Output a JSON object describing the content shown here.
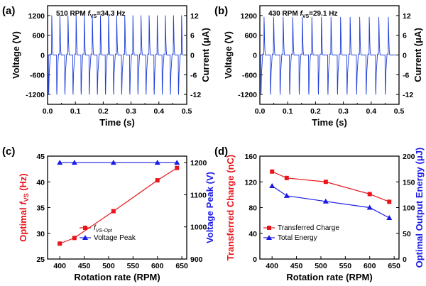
{
  "colors": {
    "black": "#000000",
    "red": "#e8141a",
    "blue": "#1a1ae8",
    "trace": "#1f3fd9"
  },
  "chart_data": [
    {
      "panel": "(a)",
      "type": "line",
      "annotation_prefix": "510 RPM ",
      "annotation_f": "f",
      "annotation_sub": "VS",
      "annotation_suffix": "=34.3 Hz",
      "xlabel": "Time (s)",
      "ylabel_left": "Voltage (V)",
      "ylabel_right": "Current (μA)",
      "xlim": [
        0.0,
        0.5
      ],
      "ylim_left": [
        -1500,
        1500
      ],
      "ylim_right": [
        -15,
        15
      ],
      "xticks": [
        "0.0",
        "0.1",
        "0.2",
        "0.3",
        "0.4",
        "0.5"
      ],
      "yticks_left": [
        "-1200",
        "-600",
        "0",
        "600",
        "1200"
      ],
      "yticks_right": [
        "-12",
        "-6",
        "0",
        "6",
        "12"
      ],
      "frequency_hz": 34.3,
      "peak_current_ua": 12,
      "trough_current_ua": -12,
      "signal_start_s": 0.0,
      "signal_end_s": 0.49
    },
    {
      "panel": "(b)",
      "type": "line",
      "annotation_prefix": "430 RPM ",
      "annotation_f": "f",
      "annotation_sub": "VS",
      "annotation_suffix": "=29.1 Hz",
      "xlabel": "Time (s)",
      "ylabel_left": "Voltage (V)",
      "ylabel_right": "Current (μA)",
      "xlim": [
        0.0,
        0.5
      ],
      "ylim_left": [
        -1500,
        1500
      ],
      "ylim_right": [
        -15,
        15
      ],
      "xticks": [
        "0.0",
        "0.1",
        "0.2",
        "0.3",
        "0.4",
        "0.5"
      ],
      "yticks_left": [
        "-1200",
        "-600",
        "0",
        "600",
        "1200"
      ],
      "yticks_right": [
        "-12",
        "-6",
        "0",
        "6",
        "12"
      ],
      "frequency_hz": 29.1,
      "peak_current_ua": 11.5,
      "trough_current_ua": -12,
      "signal_start_s": 0.0,
      "signal_end_s": 0.49
    },
    {
      "panel": "(c)",
      "type": "line",
      "xlabel": "Rotation rate (RPM)",
      "ylabel_left": "Optimal f",
      "ylabel_left_sub": "VS",
      "ylabel_left_unit": " (Hz)",
      "ylabel_right": "Voltage Peak (V)",
      "xlim": [
        375,
        660
      ],
      "ylim_left": [
        25,
        45
      ],
      "ylim_right": [
        900,
        1220
      ],
      "xticks": [
        400,
        450,
        500,
        550,
        600,
        650
      ],
      "yticks_left": [
        25,
        30,
        35,
        40,
        45
      ],
      "yticks_right": [
        900,
        1000,
        1100,
        1200
      ],
      "series": [
        {
          "name": "f",
          "name_sub": "VS-Opt",
          "axis": "left",
          "color": "#e8141a",
          "marker": "square",
          "x": [
            400,
            430,
            510,
            600,
            640
          ],
          "y": [
            28.0,
            29.1,
            34.3,
            40.3,
            42.7
          ]
        },
        {
          "name": "Voltage Peak",
          "axis": "right",
          "color": "#1a1ae8",
          "marker": "triangle",
          "x": [
            400,
            430,
            510,
            600,
            640
          ],
          "y": [
            1200,
            1200,
            1200,
            1200,
            1200
          ]
        }
      ],
      "legend_position": "bottom-center"
    },
    {
      "panel": "(d)",
      "type": "line",
      "xlabel": "Rotation rate (RPM)",
      "ylabel_left": "Transferred Charge (nC)",
      "ylabel_right": "Optimal Output  Energy (μJ)",
      "xlim": [
        375,
        660
      ],
      "ylim_left": [
        0,
        160
      ],
      "ylim_right": [
        0,
        200
      ],
      "xticks": [
        400,
        450,
        500,
        550,
        600,
        650
      ],
      "yticks_left": [
        0,
        40,
        80,
        120,
        160
      ],
      "yticks_right": [
        0,
        50,
        100,
        150,
        200
      ],
      "series": [
        {
          "name": "Transferred Charge",
          "axis": "left",
          "color": "#e8141a",
          "marker": "square",
          "x": [
            400,
            430,
            510,
            600,
            640
          ],
          "y": [
            136,
            126,
            120,
            101,
            89
          ]
        },
        {
          "name": "Total Energy",
          "axis": "right",
          "color": "#1a1ae8",
          "marker": "triangle",
          "x": [
            400,
            430,
            510,
            600,
            640
          ],
          "y": [
            142,
            123,
            112,
            100,
            80
          ]
        }
      ],
      "legend_position": "bottom-left"
    }
  ]
}
